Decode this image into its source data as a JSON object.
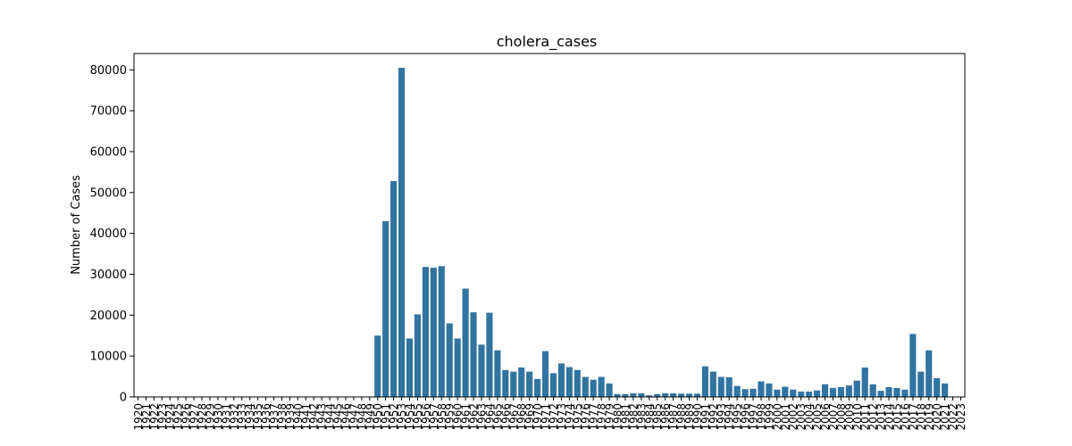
{
  "chart_data": {
    "type": "bar",
    "title": "cholera_cases",
    "xlabel": "",
    "ylabel": "Number of Cases",
    "ylim": [
      0,
      84000
    ],
    "yticks": [
      0,
      10000,
      20000,
      30000,
      40000,
      50000,
      60000,
      70000,
      80000
    ],
    "grid": false,
    "bar_color": "#3274a1",
    "categories": [
      "1920",
      "1921",
      "1922",
      "1923",
      "1924",
      "1925",
      "1926",
      "1927",
      "1928",
      "1929",
      "1930",
      "1931",
      "1932",
      "1933",
      "1934",
      "1935",
      "1936",
      "1937",
      "1938",
      "1939",
      "1940",
      "1941",
      "1942",
      "1943",
      "1944",
      "1945",
      "1946",
      "1947",
      "1948",
      "1949",
      "1950",
      "1951",
      "1952",
      "1953",
      "1954",
      "1955",
      "1956",
      "1957",
      "1958",
      "1959",
      "1960",
      "1961",
      "1962",
      "1963",
      "1964",
      "1965",
      "1966",
      "1967",
      "1968",
      "1969",
      "1970",
      "1971",
      "1972",
      "1973",
      "1974",
      "1975",
      "1976",
      "1977",
      "1978",
      "1979",
      "1980",
      "1981",
      "1982",
      "1983",
      "1984",
      "1985",
      "1986",
      "1987",
      "1988",
      "1989",
      "1990",
      "1991",
      "1992",
      "1993",
      "1994",
      "1995",
      "1996",
      "1997",
      "1998",
      "1999",
      "2000",
      "2001",
      "2002",
      "2003",
      "2004",
      "2005",
      "2006",
      "2007",
      "2008",
      "2009",
      "2010",
      "2011",
      "2012",
      "2013",
      "2014",
      "2015",
      "2016",
      "2017",
      "2018",
      "2019",
      "2020",
      "2021",
      "2022",
      "2023"
    ],
    "values": [
      0,
      0,
      0,
      0,
      0,
      0,
      0,
      0,
      0,
      0,
      0,
      0,
      0,
      0,
      0,
      0,
      0,
      0,
      0,
      0,
      0,
      0,
      0,
      0,
      0,
      0,
      0,
      0,
      0,
      0,
      15000,
      43000,
      52800,
      80500,
      14300,
      20200,
      31800,
      31600,
      32000,
      18000,
      14300,
      26500,
      20700,
      12800,
      20600,
      11400,
      6600,
      6200,
      7200,
      6200,
      4400,
      11200,
      5800,
      8200,
      7300,
      6600,
      4900,
      4200,
      4900,
      3300,
      700,
      700,
      900,
      900,
      400,
      700,
      900,
      900,
      800,
      800,
      800,
      7500,
      6200,
      4900,
      4800,
      2700,
      1900,
      2000,
      3800,
      3300,
      1800,
      2500,
      1800,
      1300,
      1300,
      1600,
      3100,
      2200,
      2400,
      2800,
      4000,
      7200,
      3100,
      1500,
      2400,
      2200,
      1800,
      15400,
      6200,
      11400,
      4600,
      3300,
      0,
      0
    ]
  }
}
